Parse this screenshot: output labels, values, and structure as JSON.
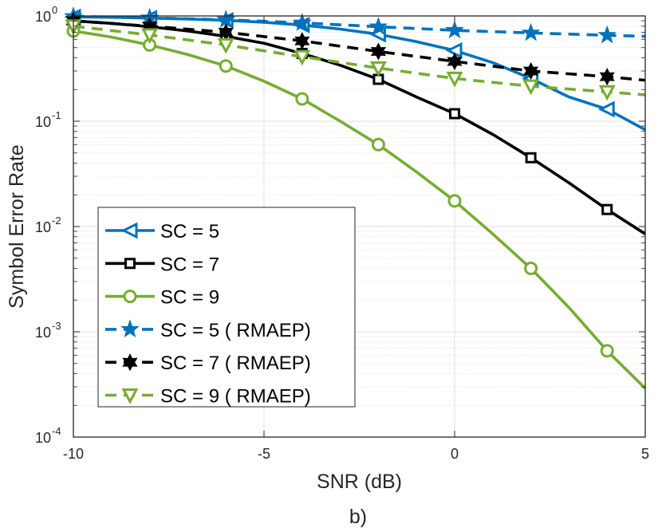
{
  "chart_data": {
    "type": "line",
    "title": "",
    "caption": "b)",
    "xlabel": "SNR (dB)",
    "ylabel": "Symbol Error Rate",
    "xlim": [
      -10,
      5
    ],
    "ylim": [
      0.0001,
      1
    ],
    "yscale": "log",
    "grid": true,
    "legend_position": "bottom-left",
    "x_ticks": [
      {
        "value": -10,
        "label": "-10"
      },
      {
        "value": -5,
        "label": "-5"
      },
      {
        "value": 0,
        "label": "0"
      },
      {
        "value": 5,
        "label": "5"
      }
    ],
    "y_ticks": [
      {
        "value": 1,
        "base": "10",
        "exp": "0"
      },
      {
        "value": 0.1,
        "base": "10",
        "exp": "-1"
      },
      {
        "value": 0.01,
        "base": "10",
        "exp": "-2"
      },
      {
        "value": 0.001,
        "base": "10",
        "exp": "-3"
      },
      {
        "value": 0.0001,
        "base": "10",
        "exp": "-4"
      }
    ],
    "colors": {
      "blue": "#0072BD",
      "black": "#000000",
      "green": "#77AC30",
      "grid": "#dfdfdf",
      "axis": "#262626"
    },
    "series": [
      {
        "name": "SC = 5",
        "color": "#0072BD",
        "dash": "solid",
        "marker": "triangle-left",
        "x": [
          -10,
          -9,
          -8,
          -7,
          -6,
          -5,
          -4,
          -3,
          -2,
          -1,
          0,
          1,
          2,
          3,
          4,
          5
        ],
        "y": [
          0.98,
          0.97,
          0.955,
          0.935,
          0.91,
          0.87,
          0.82,
          0.75,
          0.67,
          0.57,
          0.47,
          0.36,
          0.255,
          0.17,
          0.13,
          0.083
        ],
        "marker_x": [
          -10,
          -8,
          -6,
          -4,
          -2,
          0,
          2,
          4
        ]
      },
      {
        "name": "SC = 7",
        "color": "#000000",
        "dash": "solid",
        "marker": "square",
        "x": [
          -10,
          -9,
          -8,
          -7,
          -6,
          -5,
          -4,
          -3,
          -2,
          -1,
          0,
          1,
          2,
          3,
          4,
          5
        ],
        "y": [
          0.9,
          0.85,
          0.79,
          0.72,
          0.64,
          0.55,
          0.44,
          0.34,
          0.25,
          0.17,
          0.118,
          0.075,
          0.045,
          0.026,
          0.0145,
          0.0085
        ],
        "marker_x": [
          -10,
          -8,
          -6,
          -4,
          -2,
          0,
          2,
          4
        ]
      },
      {
        "name": "SC = 9",
        "color": "#77AC30",
        "dash": "solid",
        "marker": "circle",
        "x": [
          -10,
          -9,
          -8,
          -7,
          -6,
          -5,
          -4,
          -3,
          -2,
          -1,
          0,
          1,
          2,
          3,
          4,
          5
        ],
        "y": [
          0.72,
          0.63,
          0.53,
          0.43,
          0.335,
          0.24,
          0.163,
          0.1,
          0.06,
          0.033,
          0.0175,
          0.0085,
          0.004,
          0.0017,
          0.00066,
          0.00029
        ],
        "marker_x": [
          -10,
          -8,
          -6,
          -4,
          -2,
          0,
          2,
          4
        ]
      },
      {
        "name": "SC = 5 ( RMAEP)",
        "color": "#0072BD",
        "dash": "dashed",
        "marker": "pentagram",
        "x": [
          -10,
          -8,
          -6,
          -4,
          -2,
          0,
          2,
          4,
          5
        ],
        "y": [
          0.99,
          0.96,
          0.92,
          0.86,
          0.79,
          0.73,
          0.69,
          0.655,
          0.64
        ],
        "marker_x": [
          -10,
          -8,
          -6,
          -4,
          -2,
          0,
          2,
          4
        ]
      },
      {
        "name": "SC = 7 ( RMAEP)",
        "color": "#000000",
        "dash": "dashed",
        "marker": "hexagram",
        "x": [
          -10,
          -8,
          -6,
          -4,
          -2,
          0,
          2,
          4,
          5
        ],
        "y": [
          0.9,
          0.8,
          0.7,
          0.58,
          0.46,
          0.37,
          0.3,
          0.265,
          0.245
        ],
        "marker_x": [
          -10,
          -8,
          -6,
          -4,
          -2,
          0,
          2,
          4
        ]
      },
      {
        "name": "SC = 9 ( RMAEP)",
        "color": "#77AC30",
        "dash": "dashed",
        "marker": "triangle-down",
        "x": [
          -10,
          -8,
          -6,
          -4,
          -2,
          0,
          2,
          4,
          5
        ],
        "y": [
          0.8,
          0.66,
          0.53,
          0.41,
          0.32,
          0.255,
          0.215,
          0.19,
          0.178
        ],
        "marker_x": [
          -10,
          -8,
          -6,
          -4,
          -2,
          0,
          2,
          4
        ]
      }
    ]
  }
}
